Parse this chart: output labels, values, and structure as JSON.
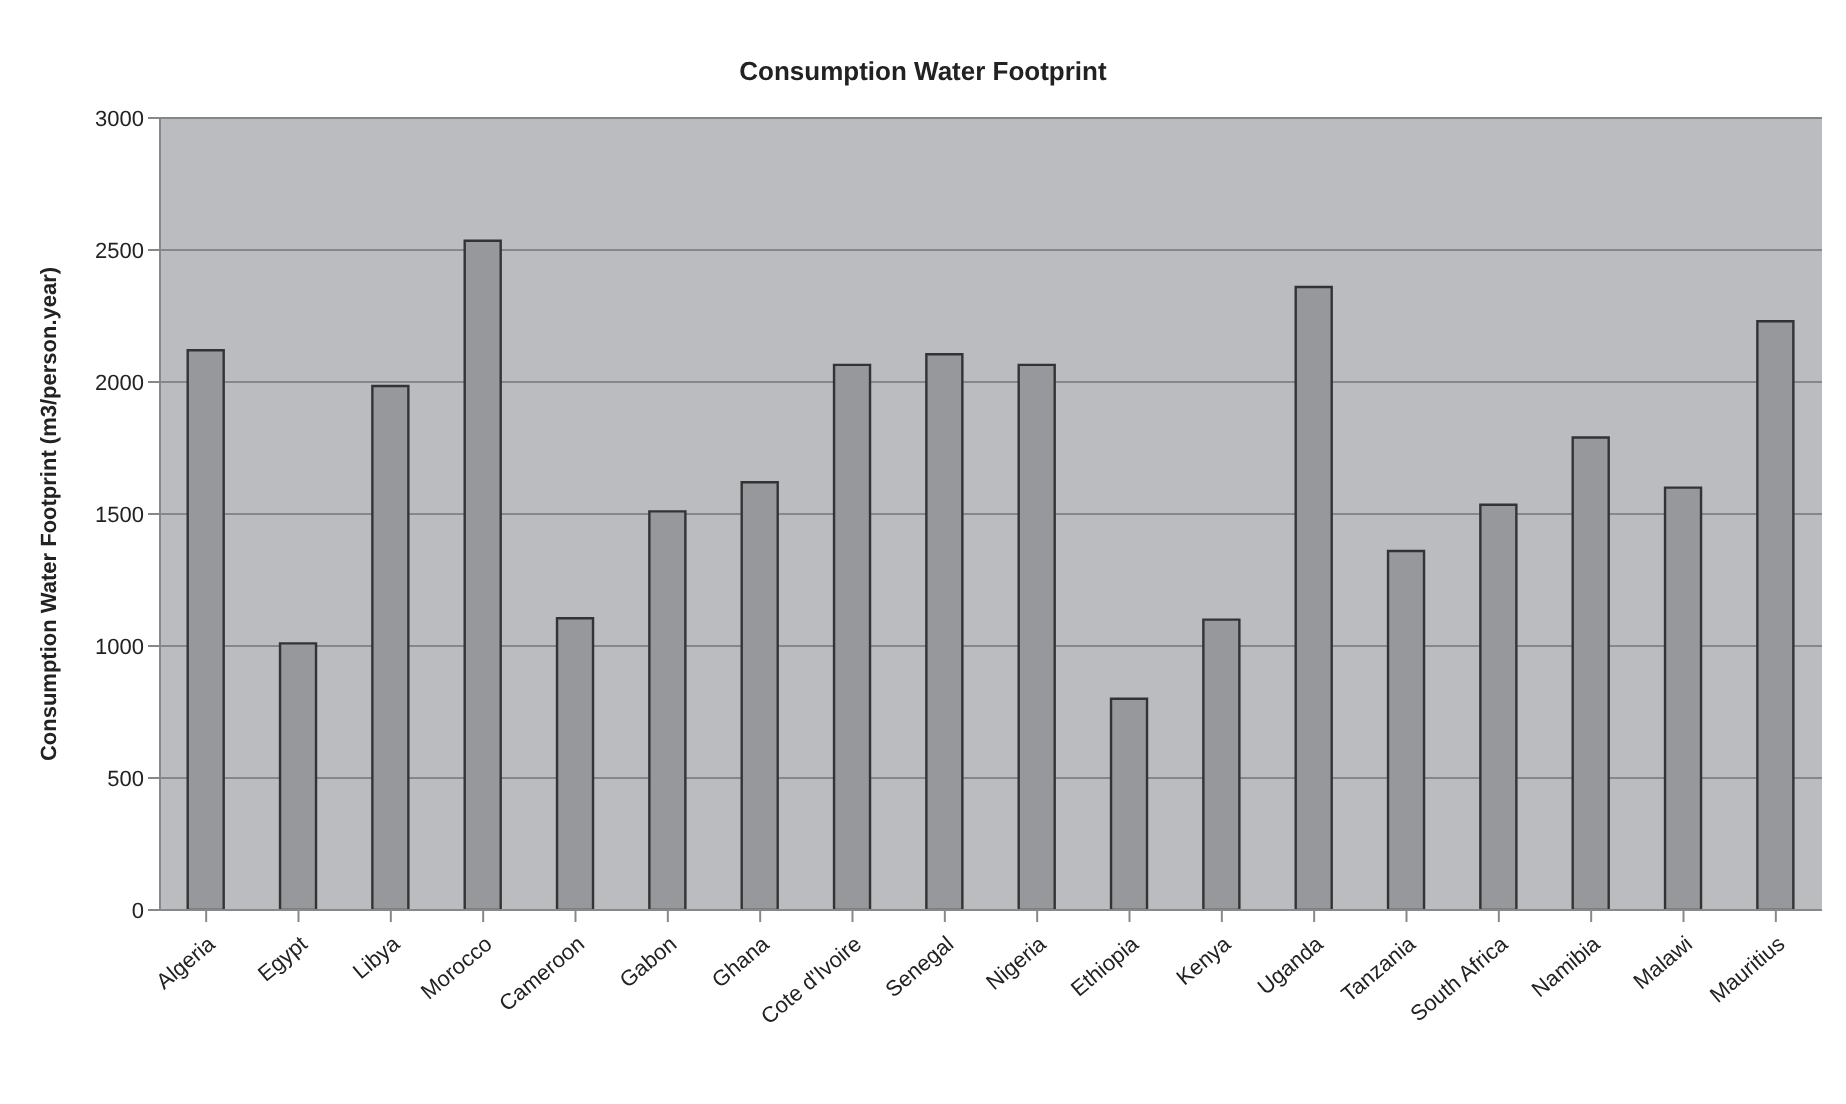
{
  "chart_data": {
    "type": "bar",
    "title": "Consumption Water Footprint",
    "ylabel": "Consumption Water Footprint (m3/person.year)",
    "categories": [
      "Algeria",
      "Egypt",
      "Libya",
      "Morocco",
      "Cameroon",
      "Gabon",
      "Ghana",
      "Cote d'Ivoire",
      "Senegal",
      "Nigeria",
      "Ethiopia",
      "Kenya",
      "Uganda",
      "Tanzania",
      "South Africa",
      "Namibia",
      "Malawi",
      "Mauritius"
    ],
    "values": [
      2120,
      1010,
      1985,
      2535,
      1105,
      1510,
      1620,
      2065,
      2105,
      2065,
      800,
      1100,
      2360,
      1360,
      1535,
      1790,
      1600,
      2230
    ],
    "color": "#97989c",
    "ylim": [
      0,
      3000
    ],
    "yticks": [
      0,
      500,
      1000,
      1500,
      2000,
      2500,
      3000
    ],
    "grid": "y",
    "legend": false
  }
}
